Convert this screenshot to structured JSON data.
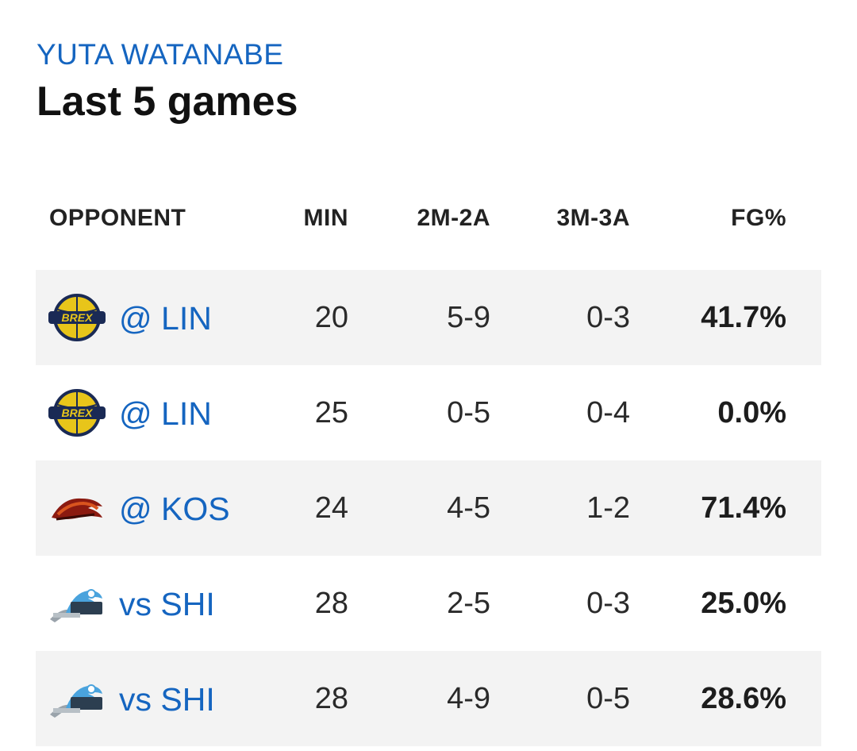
{
  "player": {
    "name": "YUTA WATANABE"
  },
  "title": "Last 5 games",
  "columns": {
    "opponent": "OPPONENT",
    "min": "MIN",
    "two": "2M-2A",
    "three": "3M-3A",
    "fg": "FG%"
  },
  "games": [
    {
      "team_logo": "utsunomiya-brex-logo",
      "opponent": "@ LIN",
      "min": "20",
      "two": "5-9",
      "three": "0-3",
      "fg": "41.7%"
    },
    {
      "team_logo": "utsunomiya-brex-logo",
      "opponent": "@ LIN",
      "min": "25",
      "two": "0-5",
      "three": "0-4",
      "fg": "0.0%"
    },
    {
      "team_logo": "alvark-logo",
      "opponent": "@ KOS",
      "min": "24",
      "two": "4-5",
      "three": "1-2",
      "fg": "71.4%"
    },
    {
      "team_logo": "shiga-lakes-logo",
      "opponent": "vs SHI",
      "min": "28",
      "two": "2-5",
      "three": "0-3",
      "fg": "25.0%"
    },
    {
      "team_logo": "shiga-lakes-logo",
      "opponent": "vs SHI",
      "min": "28",
      "two": "4-9",
      "three": "0-5",
      "fg": "28.6%"
    }
  ],
  "colors": {
    "accent": "#1565c0",
    "row_shade": "#f3f3f3",
    "brex_yellow": "#e8c51a",
    "brex_navy": "#1a2a55",
    "alvark_red": "#8b1a10",
    "alvark_orange": "#d9541e",
    "lakes_blue": "#4aa3dd",
    "lakes_gray": "#9aa3ab"
  }
}
